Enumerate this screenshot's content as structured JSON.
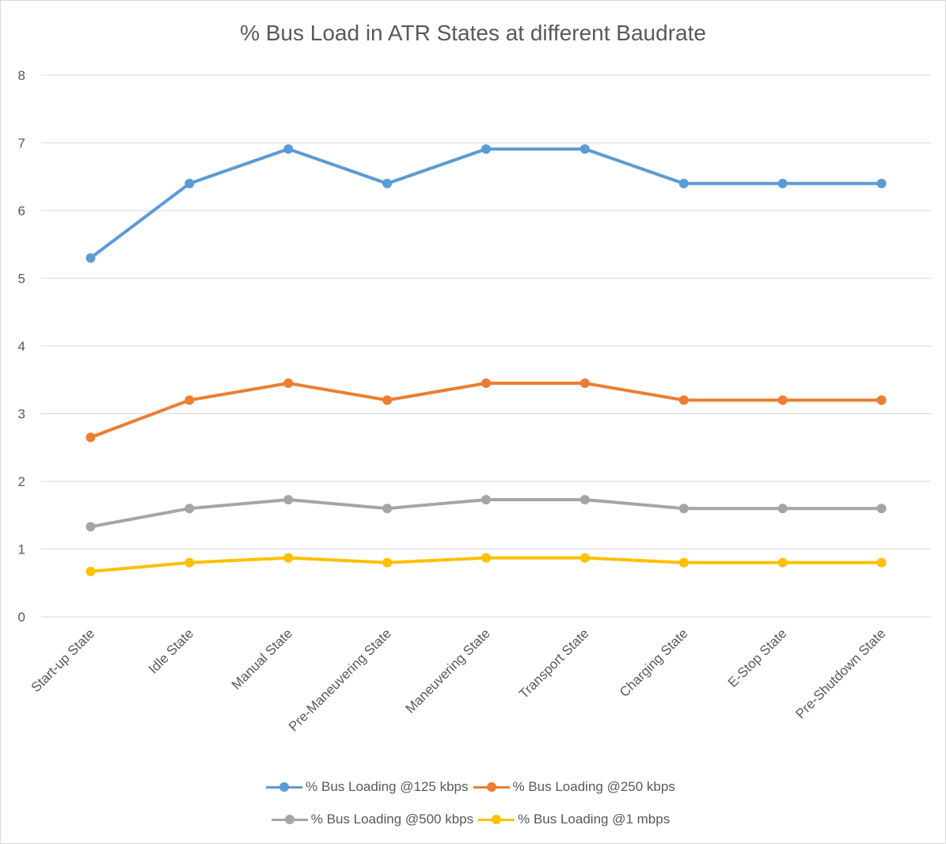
{
  "chart_data": {
    "type": "line",
    "title": "% Bus Load in ATR States at different Baudrate",
    "xlabel": "",
    "ylabel": "",
    "ylim": [
      0,
      8
    ],
    "yticks": [
      "0",
      "1",
      "2",
      "3",
      "4",
      "5",
      "6",
      "7",
      "8"
    ],
    "grid": true,
    "legend_position": "bottom",
    "categories": [
      "Start-up State",
      "Idle State",
      "Manual State",
      "Pre-Maneuvering State",
      "Maneuvering State",
      "Transport State",
      "Charging State",
      "E-Stop State",
      "Pre-Shutdown State"
    ],
    "series": [
      {
        "name": "% Bus Loading @125 kbps",
        "color": "#5b9bd5",
        "values": [
          5.3,
          6.4,
          6.91,
          6.4,
          6.91,
          6.91,
          6.4,
          6.4,
          6.4
        ]
      },
      {
        "name": "% Bus Loading @250 kbps",
        "color": "#ed7d31",
        "values": [
          2.65,
          3.2,
          3.45,
          3.2,
          3.45,
          3.45,
          3.2,
          3.2,
          3.2
        ]
      },
      {
        "name": "% Bus Loading @500 kbps",
        "color": "#a5a5a5",
        "values": [
          1.33,
          1.6,
          1.73,
          1.6,
          1.73,
          1.73,
          1.6,
          1.6,
          1.6
        ]
      },
      {
        "name": "% Bus Loading @1 mbps",
        "color": "#ffc000",
        "values": [
          0.67,
          0.8,
          0.87,
          0.8,
          0.87,
          0.87,
          0.8,
          0.8,
          0.8
        ]
      }
    ]
  }
}
